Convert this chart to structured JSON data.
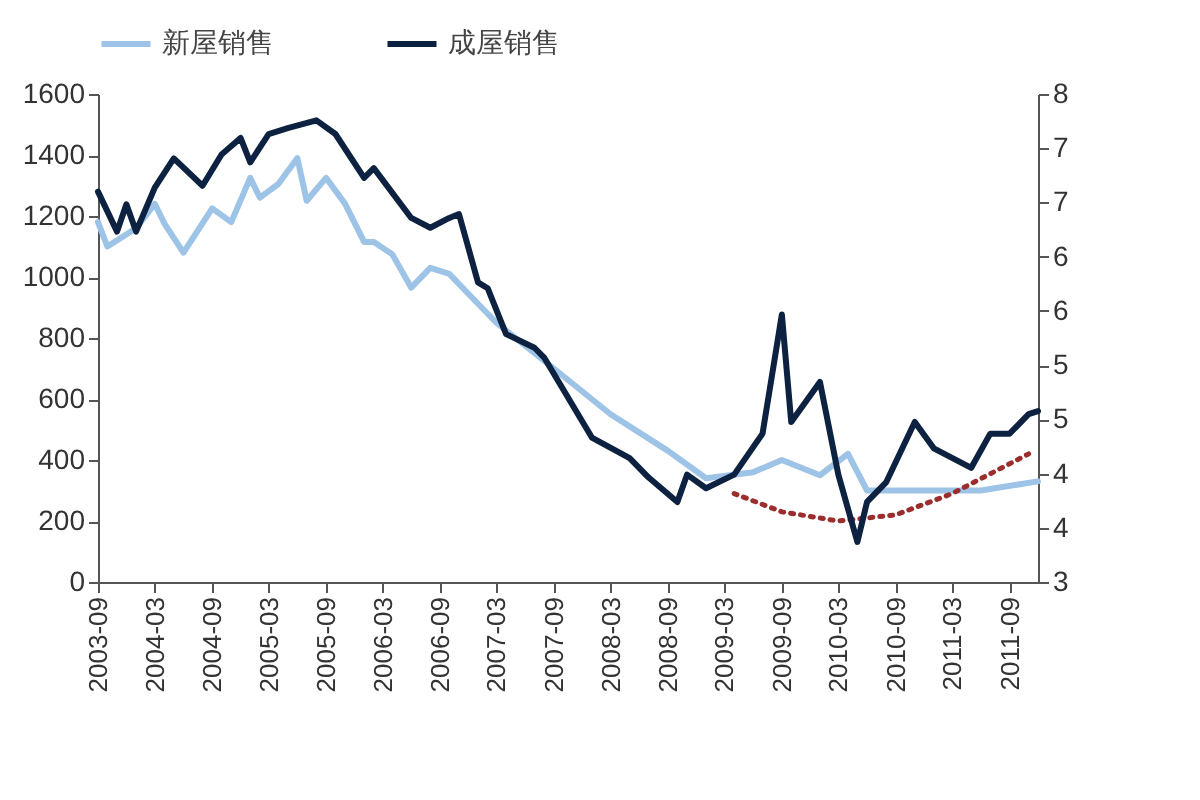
{
  "chart_data": {
    "type": "line",
    "legend": "top",
    "grid": false,
    "xlim": [
      "2003-09",
      "2011-12"
    ],
    "xticks": [
      "2003-09",
      "2004-03",
      "2004-09",
      "2005-03",
      "2005-09",
      "2006-03",
      "2006-09",
      "2007-03",
      "2007-09",
      "2008-03",
      "2008-09",
      "2009-03",
      "2009-09",
      "2010-03",
      "2010-09",
      "2011-03",
      "2011-09"
    ],
    "ylim": [
      0,
      1600
    ],
    "yticks": [
      0,
      200,
      400,
      600,
      800,
      1000,
      1200,
      1400,
      1600
    ],
    "y2lim": [
      3,
      8
    ],
    "y2ticks": [
      {
        "value": 3,
        "label": "3"
      },
      {
        "value": 3.556,
        "label": "4"
      },
      {
        "value": 4.111,
        "label": "4"
      },
      {
        "value": 4.667,
        "label": "5"
      },
      {
        "value": 5.222,
        "label": "5"
      },
      {
        "value": 5.778,
        "label": "6"
      },
      {
        "value": 6.333,
        "label": "6"
      },
      {
        "value": 6.889,
        "label": "7"
      },
      {
        "value": 7.444,
        "label": "7"
      },
      {
        "value": 8,
        "label": "8"
      }
    ],
    "series": [
      {
        "name": "新屋销售",
        "color": "#9dc3e6",
        "line_style": "solid",
        "x": [
          "2003-09",
          "2003-10",
          "2004-01",
          "2004-03",
          "2004-04",
          "2004-06",
          "2004-09",
          "2004-11",
          "2005-01",
          "2005-02",
          "2005-04",
          "2005-06",
          "2005-07",
          "2005-09",
          "2005-11",
          "2006-01",
          "2006-02",
          "2006-04",
          "2006-06",
          "2006-08",
          "2006-10",
          "2006-12",
          "2007-03",
          "2007-09",
          "2008-03",
          "2008-09",
          "2009-01",
          "2009-06",
          "2009-09",
          "2010-01",
          "2010-04",
          "2010-06",
          "2011-01",
          "2011-06",
          "2011-12"
        ],
        "values": [
          1180,
          1100,
          1160,
          1240,
          1175,
          1080,
          1225,
          1180,
          1325,
          1260,
          1305,
          1390,
          1250,
          1325,
          1240,
          1115,
          1115,
          1075,
          965,
          1030,
          1010,
          945,
          850,
          700,
          550,
          430,
          340,
          360,
          400,
          350,
          420,
          300,
          300,
          300,
          330
        ]
      },
      {
        "name": "成屋销售",
        "color": "#0d2240",
        "axis": "y2",
        "line_style": "solid",
        "x": [
          "2003-09",
          "2003-11",
          "2003-12",
          "2004-01",
          "2004-03",
          "2004-05",
          "2004-08",
          "2004-10",
          "2004-12",
          "2005-01",
          "2005-03",
          "2005-05",
          "2005-08",
          "2005-10",
          "2006-01",
          "2006-02",
          "2006-06",
          "2006-08",
          "2006-10",
          "2006-11",
          "2007-01",
          "2007-02",
          "2007-04",
          "2007-07",
          "2007-08",
          "2008-01",
          "2008-05",
          "2008-07",
          "2008-10",
          "2008-11",
          "2009-01",
          "2009-04",
          "2009-07",
          "2009-09",
          "2009-10",
          "2010-01",
          "2010-03",
          "2010-05",
          "2010-06",
          "2010-08",
          "2010-11",
          "2011-01",
          "2011-05",
          "2011-07",
          "2011-09",
          "2011-11",
          "2011-12"
        ],
        "values": [
          7.0,
          6.59,
          6.87,
          6.59,
          7.04,
          7.34,
          7.06,
          7.38,
          7.55,
          7.3,
          7.59,
          7.65,
          7.73,
          7.59,
          7.14,
          7.24,
          6.73,
          6.63,
          6.73,
          6.77,
          6.07,
          6.01,
          5.54,
          5.4,
          5.3,
          4.48,
          4.27,
          4.07,
          3.82,
          4.1,
          3.96,
          4.1,
          4.52,
          5.74,
          4.64,
          5.05,
          4.1,
          3.41,
          3.82,
          4.02,
          4.64,
          4.37,
          4.17,
          4.52,
          4.52,
          4.72,
          4.75
        ]
      },
      {
        "color": "#9b2d2d",
        "line_style": "dotted",
        "x": [
          "2009-04",
          "2009-09",
          "2010-03",
          "2010-09",
          "2011-03",
          "2011-11"
        ],
        "values": [
          290,
          230,
          200,
          220,
          290,
          420
        ]
      }
    ]
  }
}
